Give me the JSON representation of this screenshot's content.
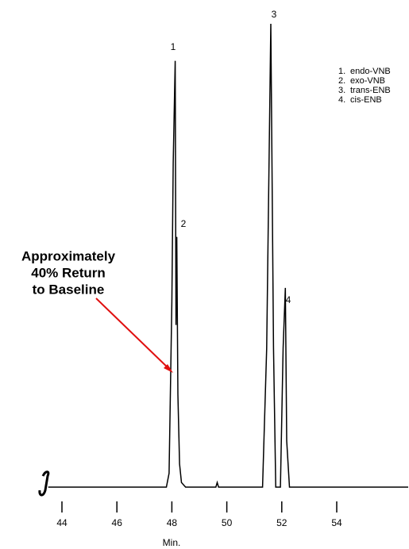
{
  "chart_data": {
    "type": "line",
    "x": [
      43.5,
      47.8,
      47.9,
      48.0,
      48.05,
      48.12,
      48.15,
      48.18,
      48.22,
      48.28,
      48.35,
      48.5,
      49.6,
      49.65,
      49.7,
      51.3,
      51.45,
      51.6,
      51.7,
      51.78,
      51.95,
      52.05,
      52.13,
      52.18,
      52.28,
      56.6
    ],
    "values": [
      0,
      0,
      3,
      40,
      70,
      92,
      35,
      54,
      20,
      5,
      1,
      0,
      0,
      1,
      0,
      0,
      30,
      100,
      30,
      0,
      0,
      30,
      43,
      10,
      0,
      0
    ],
    "color": "#000000",
    "xlim": [
      43.5,
      56.6
    ],
    "ylim": [
      0,
      100
    ],
    "xticks": [
      44,
      46,
      48,
      50,
      52,
      54
    ],
    "xlabel": "Min.",
    "peak_labels": [
      "1",
      "2",
      "3",
      "4"
    ],
    "legend": [
      {
        "number": "1.",
        "name": "endo-VNB"
      },
      {
        "number": "2.",
        "name": "exo-VNB"
      },
      {
        "number": "3.",
        "name": "trans-ENB"
      },
      {
        "number": "4.",
        "name": "cis-ENB"
      }
    ],
    "annotation": [
      "Approximately",
      "40% Return",
      "to Baseline"
    ],
    "annotation_color": "#e01010"
  }
}
